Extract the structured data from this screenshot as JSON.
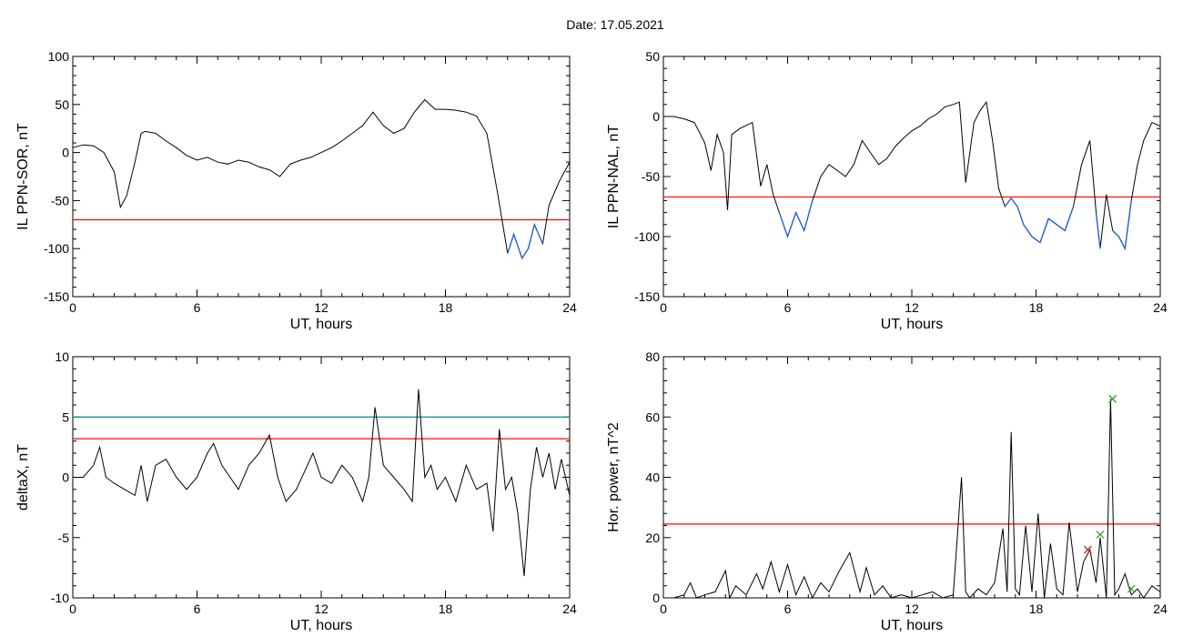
{
  "title": "Date:  17.05.2021",
  "colors": {
    "series": "#000000",
    "threshold": "#ff0000",
    "blue_segment": "#1e5fd6",
    "cyan_line": "#008b8b",
    "green_marker": "#2ca02c",
    "red_marker": "#d62728"
  },
  "chart_data": [
    {
      "type": "line",
      "xlabel": "UT, hours",
      "ylabel": "IL PPN-SOR, nT",
      "xlim": [
        0,
        24
      ],
      "ylim": [
        -150,
        100
      ],
      "xticks": [
        0,
        6,
        12,
        18,
        24
      ],
      "yticks": [
        -150,
        -100,
        -50,
        0,
        50,
        100
      ],
      "x": [
        0,
        0.5,
        1,
        1.5,
        2,
        2.3,
        2.6,
        3,
        3.3,
        3.5,
        4,
        4.5,
        5,
        5.5,
        6,
        6.5,
        7,
        7.5,
        8,
        8.5,
        9,
        9.5,
        10,
        10.5,
        11,
        11.5,
        12,
        12.5,
        13,
        13.5,
        14,
        14.5,
        15,
        15.5,
        16,
        16.5,
        17,
        17.5,
        18,
        18.5,
        19,
        19.5,
        20,
        20.5,
        21,
        21.3,
        21.7,
        22,
        22.3,
        22.7,
        23,
        23.5,
        24
      ],
      "values": [
        5,
        8,
        7,
        0,
        -20,
        -57,
        -45,
        -10,
        20,
        22,
        20,
        12,
        5,
        -3,
        -8,
        -5,
        -10,
        -12,
        -8,
        -10,
        -15,
        -18,
        -25,
        -12,
        -8,
        -5,
        0,
        5,
        12,
        20,
        28,
        42,
        28,
        20,
        25,
        42,
        55,
        45,
        45,
        44,
        42,
        38,
        20,
        -40,
        -105,
        -85,
        -110,
        -100,
        -75,
        -95,
        -55,
        -30,
        -10
      ],
      "threshold": -70,
      "grid": false
    },
    {
      "type": "line",
      "xlabel": "UT, hours",
      "ylabel": "IL PPN-NAL, nT",
      "xlim": [
        0,
        24
      ],
      "ylim": [
        -150,
        50
      ],
      "xticks": [
        0,
        6,
        12,
        18,
        24
      ],
      "yticks": [
        -150,
        -100,
        -50,
        0,
        50
      ],
      "x": [
        0,
        0.5,
        1,
        1.5,
        2,
        2.3,
        2.6,
        2.9,
        3.1,
        3.3,
        3.7,
        4.3,
        4.7,
        5,
        5.3,
        5.6,
        6,
        6.4,
        6.8,
        7.2,
        7.6,
        8,
        8.4,
        8.8,
        9.2,
        9.6,
        10,
        10.4,
        10.8,
        11.2,
        11.6,
        12,
        12.4,
        12.8,
        13.2,
        13.6,
        14,
        14.3,
        14.6,
        15,
        15.3,
        15.6,
        15.9,
        16.2,
        16.5,
        16.8,
        17.1,
        17.4,
        17.8,
        18.2,
        18.6,
        19,
        19.4,
        19.8,
        20.2,
        20.6,
        20.9,
        21.1,
        21.4,
        21.7,
        22,
        22.3,
        22.6,
        22.9,
        23.2,
        23.6,
        24
      ],
      "values": [
        0,
        0,
        -2,
        -5,
        -22,
        -45,
        -15,
        -30,
        -78,
        -15,
        -10,
        -5,
        -58,
        -40,
        -65,
        -80,
        -100,
        -80,
        -95,
        -70,
        -50,
        -40,
        -45,
        -50,
        -40,
        -20,
        -30,
        -40,
        -35,
        -25,
        -18,
        -12,
        -8,
        -2,
        2,
        8,
        10,
        12,
        -55,
        -5,
        5,
        12,
        -20,
        -60,
        -75,
        -68,
        -75,
        -90,
        -100,
        -105,
        -85,
        -90,
        -95,
        -75,
        -40,
        -20,
        -80,
        -110,
        -65,
        -95,
        -100,
        -110,
        -70,
        -40,
        -20,
        -5,
        -8
      ],
      "threshold": -67,
      "grid": false
    },
    {
      "type": "line",
      "xlabel": "UT, hours",
      "ylabel": "deltaX, nT",
      "xlim": [
        0,
        24
      ],
      "ylim": [
        -10,
        10
      ],
      "xticks": [
        0,
        6,
        12,
        18,
        24
      ],
      "yticks": [
        -10,
        -5,
        0,
        5,
        10
      ],
      "x": [
        0,
        0.5,
        1,
        1.3,
        1.6,
        2,
        2.5,
        3,
        3.3,
        3.6,
        4,
        4.5,
        5,
        5.5,
        6,
        6.5,
        6.8,
        7.2,
        7.6,
        8,
        8.5,
        9,
        9.5,
        9.9,
        10.3,
        10.8,
        11.2,
        11.6,
        12,
        12.5,
        13,
        13.5,
        14,
        14.3,
        14.6,
        15,
        15.5,
        16,
        16.4,
        16.7,
        17,
        17.3,
        17.6,
        18,
        18.5,
        19,
        19.5,
        20,
        20.3,
        20.6,
        20.9,
        21.2,
        21.5,
        21.8,
        22.1,
        22.4,
        22.7,
        23,
        23.3,
        23.6,
        24
      ],
      "values": [
        0,
        0,
        1,
        2.5,
        0,
        -0.5,
        -1,
        -1.5,
        1,
        -2,
        1,
        1.5,
        0,
        -1,
        0,
        2,
        2.8,
        1,
        0,
        -1,
        1,
        2,
        3.5,
        0,
        -2,
        -1,
        0.5,
        2,
        0,
        -0.5,
        1,
        0,
        -2,
        0,
        5.8,
        1,
        0,
        -1,
        -2,
        7.3,
        0,
        1,
        -1,
        0,
        -2,
        1,
        -1,
        -0.5,
        -4.5,
        4,
        -1,
        0,
        -3,
        -8.2,
        -1,
        2.5,
        0,
        2,
        -1,
        1.5,
        -1.5
      ],
      "thresholds": [
        5,
        3.2
      ],
      "grid": false
    },
    {
      "type": "line",
      "xlabel": "UT, hours",
      "ylabel": "Hor. power, nT^2",
      "xlim": [
        0,
        24
      ],
      "ylim": [
        0,
        80
      ],
      "xticks": [
        0,
        6,
        12,
        18,
        24
      ],
      "yticks": [
        0,
        20,
        40,
        60,
        80
      ],
      "x": [
        0,
        0.5,
        1,
        1.3,
        1.6,
        2,
        2.5,
        3,
        3.2,
        3.5,
        4,
        4.5,
        4.8,
        5.2,
        5.6,
        6,
        6.4,
        6.8,
        7.2,
        7.6,
        8,
        8.5,
        9,
        9.5,
        9.8,
        10.2,
        10.6,
        11,
        11.5,
        12,
        12.5,
        13,
        13.5,
        14,
        14.4,
        14.6,
        14.8,
        15.2,
        15.6,
        16,
        16.4,
        16.6,
        16.8,
        17,
        17.2,
        17.5,
        17.8,
        18.1,
        18.4,
        18.7,
        19,
        19.3,
        19.6,
        20,
        20.3,
        20.6,
        20.9,
        21.1,
        21.4,
        21.6,
        21.8,
        22,
        22.3,
        22.6,
        22.9,
        23.2,
        23.6,
        24
      ],
      "values": [
        0,
        0,
        1,
        5,
        0,
        1,
        2,
        9,
        0,
        4,
        1,
        8,
        3,
        12,
        2,
        11,
        1,
        7,
        0,
        5,
        2,
        9,
        15,
        2,
        10,
        1,
        4,
        0,
        1,
        0,
        1,
        2,
        0,
        1,
        40,
        2,
        0,
        3,
        1,
        5,
        23,
        2,
        55,
        3,
        1,
        24,
        2,
        28,
        0,
        18,
        3,
        1,
        25,
        2,
        12,
        16,
        5,
        20,
        0,
        66,
        1,
        3,
        8,
        1,
        3,
        0,
        4,
        2
      ],
      "threshold": 24.5,
      "markers": [
        {
          "x": 21.7,
          "y": 66,
          "color": "green"
        },
        {
          "x": 21.1,
          "y": 21,
          "color": "green"
        },
        {
          "x": 20.5,
          "y": 16,
          "color": "red"
        },
        {
          "x": 22.6,
          "y": 3,
          "color": "green"
        }
      ],
      "grid": false
    }
  ]
}
